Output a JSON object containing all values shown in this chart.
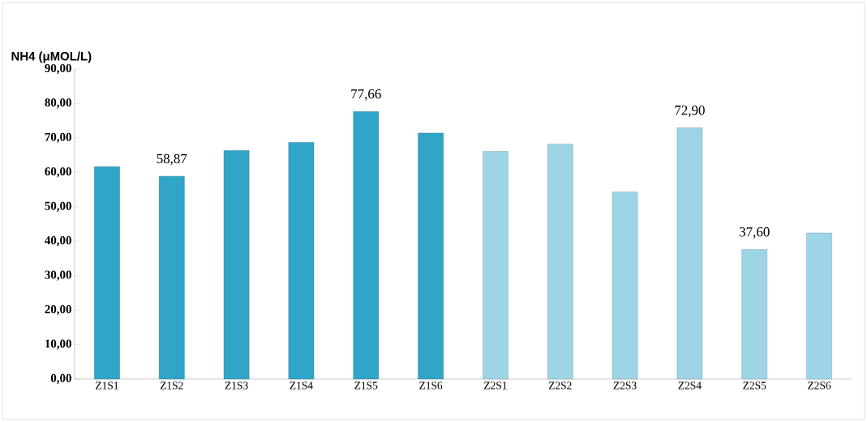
{
  "chart_data": {
    "type": "bar",
    "ylabel": "NH4 (μMOL/L)",
    "categories": [
      "Z1S1",
      "Z1S2",
      "Z1S3",
      "Z1S4",
      "Z1S5",
      "Z1S6",
      "Z2S1",
      "Z2S2",
      "Z2S3",
      "Z2S4",
      "Z2S5",
      "Z2S6"
    ],
    "values": [
      61.6,
      58.87,
      66.3,
      68.7,
      77.66,
      71.4,
      66.1,
      68.2,
      54.3,
      72.9,
      37.6,
      42.4
    ],
    "value_labels": [
      null,
      "58,87",
      null,
      null,
      "77,66",
      null,
      null,
      null,
      null,
      "72,90",
      "37,60",
      null
    ],
    "colors": [
      "#31a5c8",
      "#31a5c8",
      "#31a5c8",
      "#31a5c8",
      "#31a5c8",
      "#31a5c8",
      "#9dd5e6",
      "#9dd5e6",
      "#9dd5e6",
      "#9dd5e6",
      "#9dd5e6",
      "#9dd5e6"
    ],
    "ylim": [
      0,
      90
    ],
    "yticks": [
      {
        "value": 0,
        "label": "0,00"
      },
      {
        "value": 10,
        "label": "10,00"
      },
      {
        "value": 20,
        "label": "20,00"
      },
      {
        "value": 30,
        "label": "30,00"
      },
      {
        "value": 40,
        "label": "40,00"
      },
      {
        "value": 50,
        "label": "50,00"
      },
      {
        "value": 60,
        "label": "60,00"
      },
      {
        "value": 70,
        "label": "70,00"
      },
      {
        "value": 80,
        "label": "80,00"
      },
      {
        "value": 90,
        "label": "90,00"
      }
    ],
    "grid": false
  }
}
